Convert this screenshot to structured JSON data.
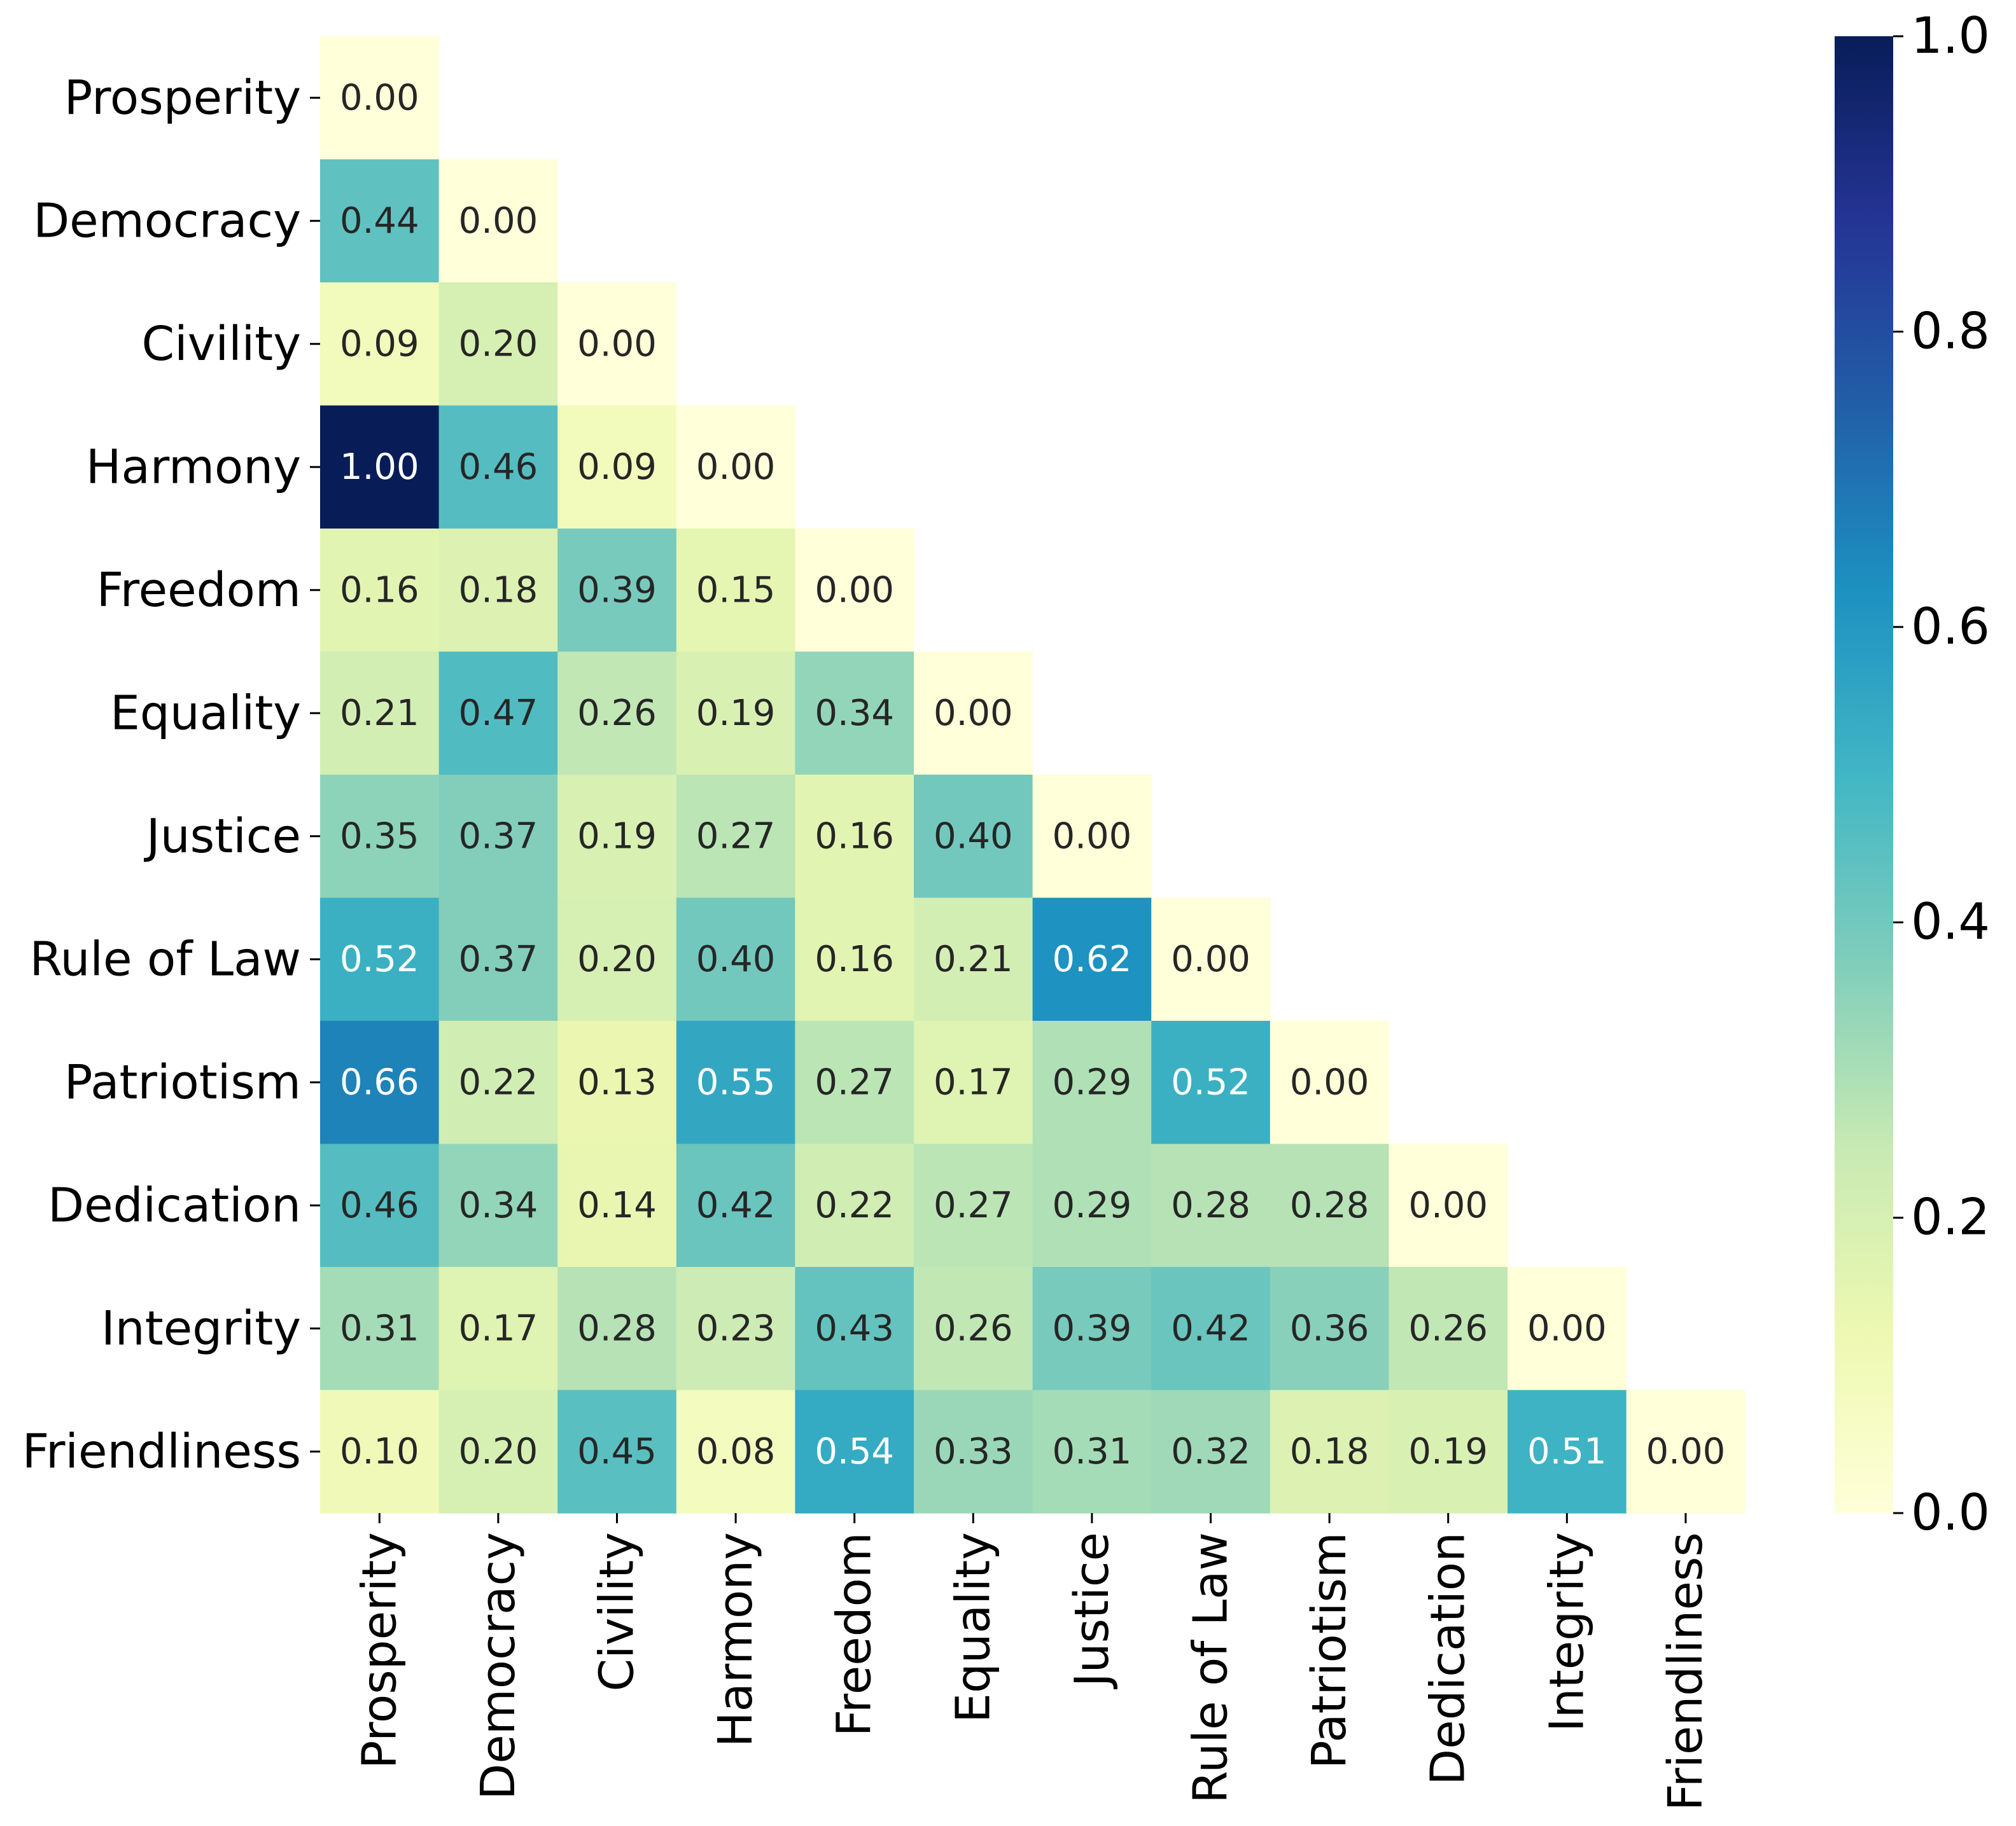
{
  "chart_data": {
    "type": "heatmap",
    "title": "",
    "xlabel": "",
    "ylabel": "",
    "mask": "upper-triangle",
    "categories": [
      "Prosperity",
      "Democracy",
      "Civility",
      "Harmony",
      "Freedom",
      "Equality",
      "Justice",
      "Rule of Law",
      "Patriotism",
      "Dedication",
      "Integrity",
      "Friendliness"
    ],
    "values": [
      [
        0.0
      ],
      [
        0.44,
        0.0
      ],
      [
        0.09,
        0.2,
        0.0
      ],
      [
        1.0,
        0.46,
        0.09,
        0.0
      ],
      [
        0.16,
        0.18,
        0.39,
        0.15,
        0.0
      ],
      [
        0.21,
        0.47,
        0.26,
        0.19,
        0.34,
        0.0
      ],
      [
        0.35,
        0.37,
        0.19,
        0.27,
        0.16,
        0.4,
        0.0
      ],
      [
        0.52,
        0.37,
        0.2,
        0.4,
        0.16,
        0.21,
        0.62,
        0.0
      ],
      [
        0.66,
        0.22,
        0.13,
        0.55,
        0.27,
        0.17,
        0.29,
        0.52,
        0.0
      ],
      [
        0.46,
        0.34,
        0.14,
        0.42,
        0.22,
        0.27,
        0.29,
        0.28,
        0.28,
        0.0
      ],
      [
        0.31,
        0.17,
        0.28,
        0.23,
        0.43,
        0.26,
        0.39,
        0.42,
        0.36,
        0.26,
        0.0
      ],
      [
        0.1,
        0.2,
        0.45,
        0.08,
        0.54,
        0.33,
        0.31,
        0.32,
        0.18,
        0.19,
        0.51,
        0.0
      ]
    ],
    "labels": [
      [
        "0.00"
      ],
      [
        "0.44",
        "0.00"
      ],
      [
        "0.09",
        "0.20",
        "0.00"
      ],
      [
        "1.00",
        "0.46",
        "0.09",
        "0.00"
      ],
      [
        "0.16",
        "0.18",
        "0.39",
        "0.15",
        "0.00"
      ],
      [
        "0.21",
        "0.47",
        "0.26",
        "0.19",
        "0.34",
        "0.00"
      ],
      [
        "0.35",
        "0.37",
        "0.19",
        "0.27",
        "0.16",
        "0.40",
        "0.00"
      ],
      [
        "0.52",
        "0.37",
        "0.20",
        "0.40",
        "0.16",
        "0.21",
        "0.62",
        "0.00"
      ],
      [
        "0.66",
        "0.22",
        "0.13",
        "0.55",
        "0.27",
        "0.17",
        "0.29",
        "0.52",
        "0.00"
      ],
      [
        "0.46",
        "0.34",
        "0.14",
        "0.42",
        "0.22",
        "0.27",
        "0.29",
        "0.28",
        "0.28",
        "0.00"
      ],
      [
        "0.31",
        "0.17",
        "0.28",
        "0.23",
        "0.43",
        "0.26",
        "0.39",
        "0.42",
        "0.36",
        "0.26",
        "0.00"
      ],
      [
        "0.10",
        "0.20",
        "0.45",
        "0.08",
        "0.54",
        "0.33",
        "0.31",
        "0.32",
        "0.18",
        "0.19",
        "0.51",
        "0.00"
      ]
    ],
    "colormap": "YlGnBu",
    "colormap_stops": [
      "#ffffd9",
      "#edf8b1",
      "#c7e9b4",
      "#7fcdbb",
      "#41b6c4",
      "#1d91c0",
      "#225ea8",
      "#253494",
      "#081d58"
    ],
    "text_dark_color": "#262626",
    "text_light_color": "#ffffff",
    "vmin": 0.0,
    "vmax": 1.0,
    "colorbar_ticks": [
      0.0,
      0.2,
      0.4,
      0.6,
      0.8,
      1.0
    ],
    "colorbar_tick_labels": [
      "0.0",
      "0.2",
      "0.4",
      "0.6",
      "0.8",
      "1.0"
    ]
  }
}
